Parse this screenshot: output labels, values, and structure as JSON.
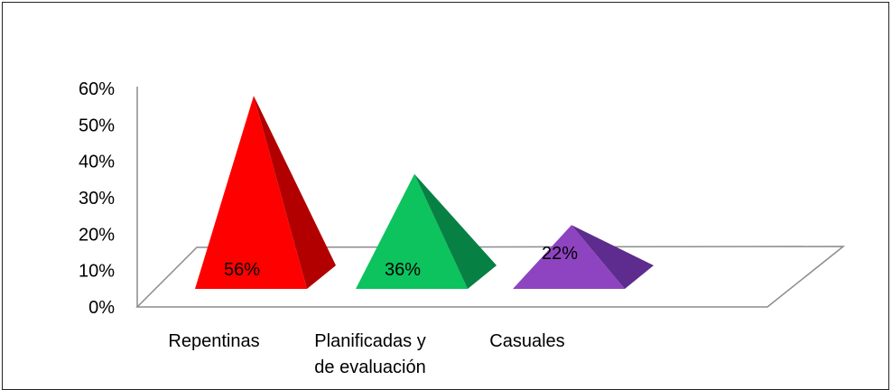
{
  "chart_data": {
    "type": "bar",
    "bar_shape": "3d-pyramid",
    "categories": [
      "Repentinas",
      "Planificadas y de evaluación",
      "Casuales"
    ],
    "category_label_lines": [
      [
        "Repentinas"
      ],
      [
        "Planificadas y",
        "de evaluación"
      ],
      [
        "Casuales"
      ]
    ],
    "values": [
      0.56,
      0.36,
      0.22
    ],
    "data_labels": [
      "56%",
      "36%",
      "22%"
    ],
    "colors": {
      "front": [
        "#ff0000",
        "#0cc35e",
        "#8e44c0"
      ],
      "side": [
        "#b20000",
        "#078044",
        "#5e2b8e"
      ]
    },
    "y_ticks": [
      0,
      0.1,
      0.2,
      0.3,
      0.4,
      0.5,
      0.6
    ],
    "y_tick_labels": [
      "0%",
      "10%",
      "20%",
      "30%",
      "40%",
      "50%",
      "60%"
    ],
    "ylim": [
      0,
      0.6
    ],
    "title": "",
    "xlabel": "",
    "ylabel": "",
    "legend": "none",
    "grid": false
  }
}
